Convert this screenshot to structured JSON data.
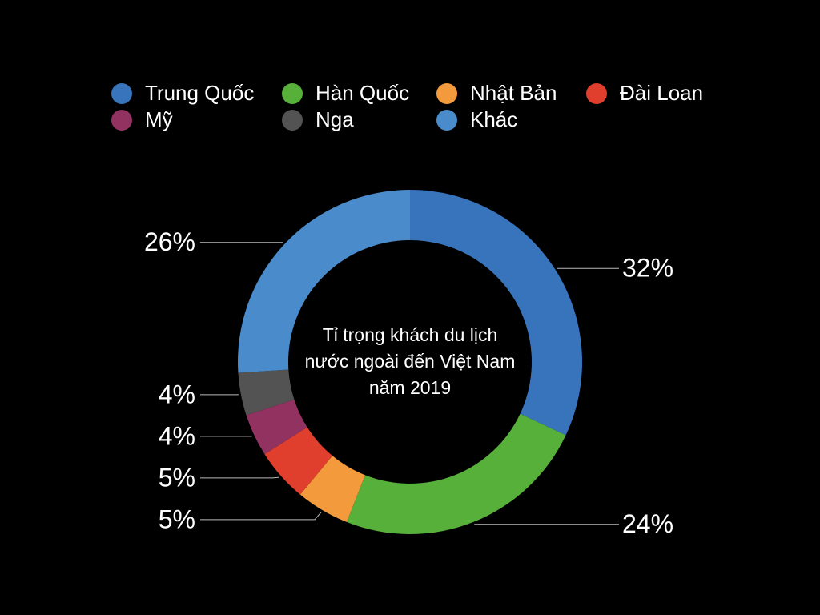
{
  "chart_data": {
    "type": "donut",
    "title": "Tỉ trọng khách du lịch nước ngoài đến Việt Nam năm 2019",
    "categories": [
      "Trung Quốc",
      "Hàn Quốc",
      "Nhật Bản",
      "Đài Loan",
      "Mỹ",
      "Nga",
      "Khác"
    ],
    "values": [
      32,
      24,
      5,
      5,
      4,
      4,
      26
    ],
    "value_labels": [
      "32%",
      "24%",
      "5%",
      "5%",
      "4%",
      "4%",
      "26%"
    ],
    "colors": [
      "#3874bc",
      "#56b03a",
      "#f39a3c",
      "#df3f2c",
      "#923260",
      "#535353",
      "#498bcb"
    ]
  }
}
